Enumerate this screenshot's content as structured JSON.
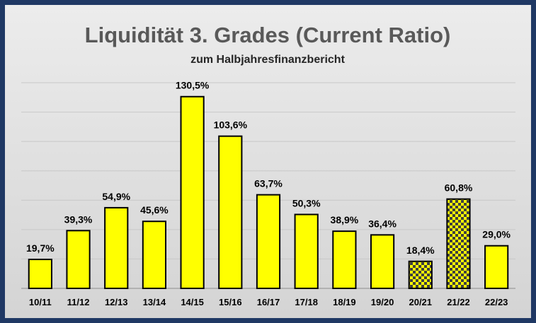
{
  "chart_data": {
    "type": "bar",
    "title": "Liquidität 3. Grades (Current Ratio)",
    "subtitle": "zum Halbjahresfinanzbericht",
    "categories": [
      "10/11",
      "11/12",
      "12/13",
      "13/14",
      "14/15",
      "15/16",
      "16/17",
      "17/18",
      "18/19",
      "19/20",
      "20/21",
      "21/22",
      "22/23"
    ],
    "values": [
      19.7,
      39.3,
      54.9,
      45.6,
      130.5,
      103.6,
      63.7,
      50.3,
      38.9,
      36.4,
      18.4,
      60.8,
      29.0
    ],
    "data_labels": [
      "19,7%",
      "39,3%",
      "54,9%",
      "45,6%",
      "130,5%",
      "103,6%",
      "63,7%",
      "50,3%",
      "38,9%",
      "36,4%",
      "18,4%",
      "60,8%",
      "29,0%"
    ],
    "patterned": [
      false,
      false,
      false,
      false,
      false,
      false,
      false,
      false,
      false,
      false,
      true,
      true,
      false
    ],
    "ylim": [
      0,
      140
    ],
    "grid": true,
    "legend": "none",
    "colors": {
      "bar": "#ffff00",
      "pattern_dark": "#404040",
      "bar_outline": "#000000",
      "frame": "#1f3864"
    }
  }
}
